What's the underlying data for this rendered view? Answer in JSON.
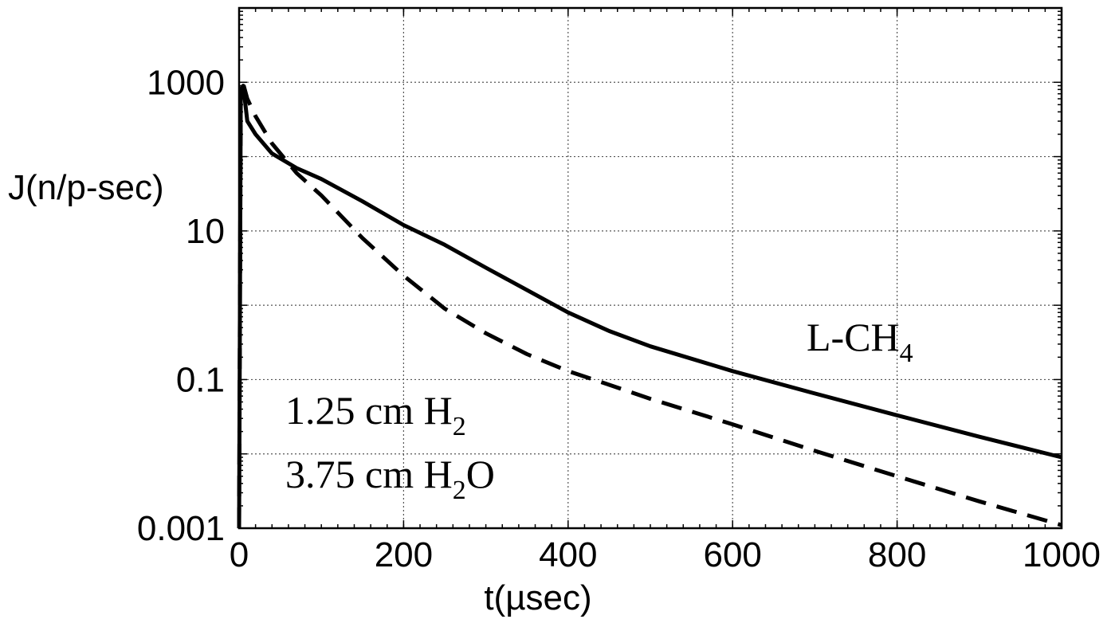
{
  "chart_data": {
    "type": "line",
    "title": "",
    "xlabel": "t(µsec)",
    "ylabel": "J(n/p-sec)",
    "xlim": [
      0,
      1000
    ],
    "ylim": [
      0.001,
      10000
    ],
    "y_scale": "log",
    "grid": true,
    "x_ticks": [
      "0",
      "200",
      "400",
      "600",
      "800",
      "1000"
    ],
    "y_ticks": [
      {
        "value": 1000,
        "label": "1000"
      },
      {
        "value": 10,
        "label": "10"
      },
      {
        "value": 0.1,
        "label": "0.1"
      },
      {
        "value": 0.001,
        "label": "0.001"
      }
    ],
    "annotations": {
      "l_ch4": {
        "base": "L-CH",
        "sub": "4"
      },
      "h2_line": {
        "pre": "1.25 cm H",
        "sub": "2",
        "post": ""
      },
      "h2o_line": {
        "pre": "3.75 cm H",
        "sub": "2",
        "post": "O"
      }
    },
    "series": [
      {
        "style": "solid",
        "x": [
          0,
          2,
          5,
          10,
          20,
          40,
          70,
          100,
          150,
          200,
          250,
          300,
          350,
          400,
          450,
          500,
          600,
          700,
          800,
          900,
          1000
        ],
        "y": [
          0.001,
          800,
          900,
          300,
          200,
          110,
          70,
          50,
          25,
          12,
          6.5,
          3.2,
          1.6,
          0.8,
          0.45,
          0.28,
          0.13,
          0.065,
          0.033,
          0.017,
          0.009
        ]
      },
      {
        "style": "dashed",
        "x": [
          0,
          2,
          5,
          10,
          20,
          40,
          70,
          100,
          150,
          200,
          250,
          300,
          350,
          400,
          450,
          500,
          600,
          700,
          800,
          900,
          1000
        ],
        "y": [
          0.001,
          800,
          950,
          600,
          350,
          150,
          60,
          30,
          8,
          2.5,
          0.9,
          0.42,
          0.22,
          0.13,
          0.085,
          0.055,
          0.025,
          0.011,
          0.005,
          0.0023,
          0.0011
        ]
      }
    ]
  }
}
